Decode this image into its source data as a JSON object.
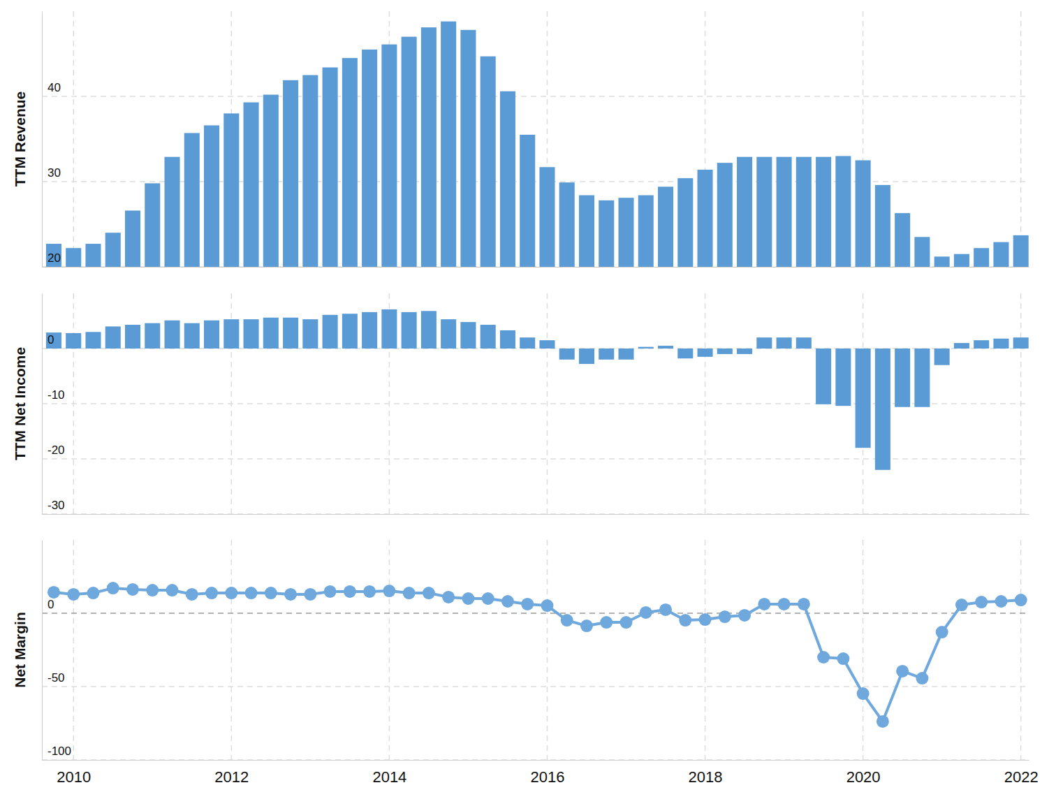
{
  "chart_data": [
    {
      "type": "bar",
      "y_label": "TTM Revenue",
      "x": [
        2009.75,
        2010,
        2010.25,
        2010.5,
        2010.75,
        2011,
        2011.25,
        2011.5,
        2011.75,
        2012,
        2012.25,
        2012.5,
        2012.75,
        2013,
        2013.25,
        2013.5,
        2013.75,
        2014,
        2014.25,
        2014.5,
        2014.75,
        2015,
        2015.25,
        2015.5,
        2015.75,
        2016,
        2016.25,
        2016.5,
        2016.75,
        2017,
        2017.25,
        2017.5,
        2017.75,
        2018,
        2018.25,
        2018.5,
        2018.75,
        2019,
        2019.25,
        2019.5,
        2019.75,
        2020,
        2020.25,
        2020.5,
        2020.75,
        2021,
        2021.25,
        2021.5,
        2021.75,
        2022
      ],
      "values": [
        22.7,
        22.2,
        22.7,
        24.0,
        26.6,
        29.8,
        32.9,
        35.7,
        36.6,
        38.0,
        39.3,
        40.2,
        41.9,
        42.5,
        43.4,
        44.5,
        45.5,
        46.1,
        47.0,
        48.1,
        48.8,
        47.8,
        44.7,
        40.6,
        35.5,
        31.7,
        29.9,
        28.4,
        27.8,
        28.1,
        28.4,
        29.4,
        30.4,
        31.4,
        32.2,
        32.9,
        32.9,
        32.9,
        32.9,
        32.9,
        33.0,
        32.5,
        29.6,
        26.3,
        23.5,
        21.2,
        21.5,
        22.2,
        22.9,
        23.7
      ],
      "xlim": [
        2009.6,
        2022.1
      ],
      "xticks": [
        2010,
        2012,
        2014,
        2016,
        2018,
        2020,
        2022
      ],
      "ylim": [
        20,
        50
      ],
      "yticks": [
        20,
        30,
        40
      ],
      "grid": true,
      "tick_labels": "y",
      "color": "#5b9bd5"
    },
    {
      "type": "bar",
      "y_label": "TTM Net Income",
      "x": [
        2009.75,
        2010,
        2010.25,
        2010.5,
        2010.75,
        2011,
        2011.25,
        2011.5,
        2011.75,
        2012,
        2012.25,
        2012.5,
        2012.75,
        2013,
        2013.25,
        2013.5,
        2013.75,
        2014,
        2014.25,
        2014.5,
        2014.75,
        2015,
        2015.25,
        2015.5,
        2015.75,
        2016,
        2016.25,
        2016.5,
        2016.75,
        2017,
        2017.25,
        2017.5,
        2017.75,
        2018,
        2018.25,
        2018.5,
        2018.75,
        2019,
        2019.25,
        2019.5,
        2019.75,
        2020,
        2020.25,
        2020.5,
        2020.75,
        2021,
        2021.25,
        2021.5,
        2021.75,
        2022
      ],
      "values": [
        2.9,
        2.8,
        3.0,
        4.0,
        4.3,
        4.6,
        5.1,
        4.6,
        5.1,
        5.3,
        5.3,
        5.6,
        5.6,
        5.3,
        6.1,
        6.3,
        6.6,
        7.1,
        6.6,
        6.8,
        5.3,
        4.8,
        4.3,
        3.3,
        2.0,
        1.5,
        -2.0,
        -2.8,
        -2.0,
        -2.0,
        0.3,
        0.5,
        -1.8,
        -1.5,
        -1.0,
        -1.0,
        2.0,
        2.0,
        2.0,
        -10.1,
        -10.4,
        -18.0,
        -22.0,
        -10.6,
        -10.6,
        -3.0,
        1.0,
        1.5,
        1.8,
        2.0
      ],
      "xlim": [
        2009.6,
        2022.1
      ],
      "xticks": [
        2010,
        2012,
        2014,
        2016,
        2018,
        2020,
        2022
      ],
      "ylim": [
        -30,
        10
      ],
      "yticks": [
        -30,
        -20,
        -10,
        0
      ],
      "grid": true,
      "tick_labels": "y",
      "color": "#5b9bd5"
    },
    {
      "type": "line",
      "y_label": "Net Margin",
      "x": [
        2009.75,
        2010,
        2010.25,
        2010.5,
        2010.75,
        2011,
        2011.25,
        2011.5,
        2011.75,
        2012,
        2012.25,
        2012.5,
        2012.75,
        2013,
        2013.25,
        2013.5,
        2013.75,
        2014,
        2014.25,
        2014.5,
        2014.75,
        2015,
        2015.25,
        2015.5,
        2015.75,
        2016,
        2016.25,
        2016.5,
        2016.75,
        2017,
        2017.25,
        2017.5,
        2017.75,
        2018,
        2018.25,
        2018.5,
        2018.75,
        2019,
        2019.25,
        2019.5,
        2019.75,
        2020,
        2020.25,
        2020.5,
        2020.75,
        2021,
        2021.25,
        2021.5,
        2021.75,
        2022
      ],
      "values": [
        14.3,
        12.9,
        13.8,
        17.1,
        16.2,
        15.7,
        15.7,
        12.9,
        13.8,
        13.8,
        13.8,
        13.8,
        12.9,
        12.9,
        14.8,
        14.8,
        14.8,
        15.2,
        13.8,
        13.8,
        11.0,
        10.0,
        10.0,
        8.1,
        6.2,
        5.2,
        -4.8,
        -8.6,
        -6.2,
        -6.2,
        0.5,
        2.4,
        -4.8,
        -4.3,
        -2.4,
        -1.4,
        6.2,
        6.2,
        6.2,
        -30.0,
        -31.0,
        -54.8,
        -73.8,
        -39.5,
        -44.3,
        -12.9,
        5.7,
        7.6,
        8.1,
        9.0
      ],
      "xlim": [
        2009.6,
        2022.1
      ],
      "xticks": [
        2010,
        2012,
        2014,
        2016,
        2018,
        2020,
        2022
      ],
      "ylim": [
        -100,
        50
      ],
      "yticks": [
        -100,
        -50,
        0
      ],
      "grid": true,
      "marker": "circle",
      "color": "#6fa8dc"
    }
  ]
}
